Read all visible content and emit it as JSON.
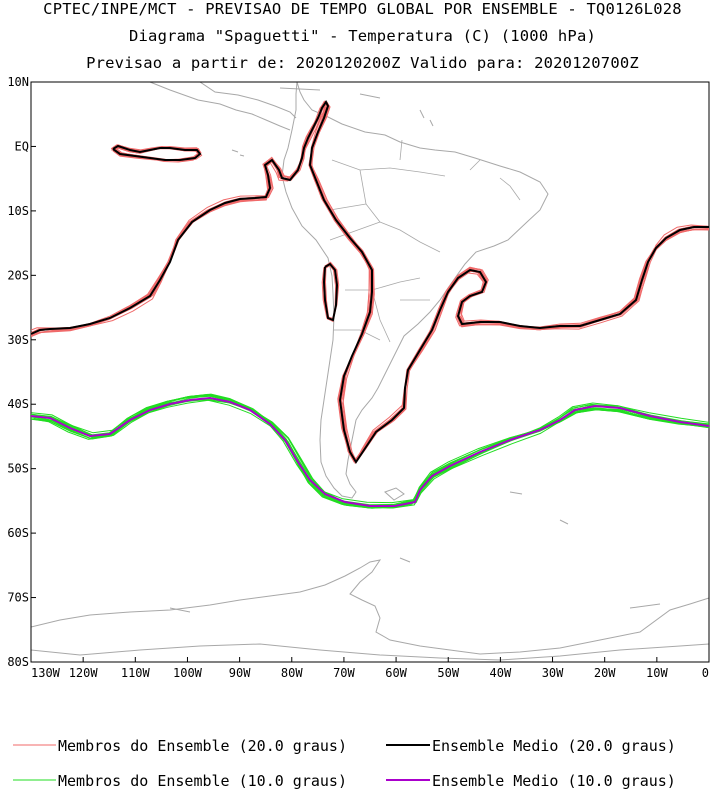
{
  "header": {
    "line1": "CPTEC/INPE/MCT - PREVISAO DE TEMPO GLOBAL POR ENSEMBLE - TQ0126L028",
    "line2": "Diagrama \"Spaguetti\" - Temperatura (C) (1000 hPa)",
    "line3": "Previsao a partir de: 2020120200Z  Valido para: 2020120700Z"
  },
  "map": {
    "lat_labels": [
      "10N",
      "EQ",
      "10S",
      "20S",
      "30S",
      "40S",
      "50S",
      "60S",
      "70S",
      "80S"
    ],
    "lon_labels": [
      "130W",
      "120W",
      "110W",
      "100W",
      "90W",
      "80W",
      "70W",
      "60W",
      "50W",
      "40W",
      "30W",
      "20W",
      "10W",
      "0"
    ],
    "extent": {
      "lon_min": -130,
      "lon_max": 0,
      "lat_min": -80,
      "lat_max": 10
    },
    "colors": {
      "member_20": "#f06a6a",
      "mean_20": "#000000",
      "member_10": "#22dd22",
      "mean_10": "#aa00cc",
      "coast": "#a8a8a8"
    }
  },
  "legend": [
    {
      "label": "Membros do Ensemble (20.0 graus)",
      "color": "#f06a6a"
    },
    {
      "label": "Ensemble Medio (20.0 graus)",
      "color": "#000000"
    },
    {
      "label": "Membros do Ensemble (10.0 graus)",
      "color": "#22dd22"
    },
    {
      "label": "Ensemble Medio (10.0 graus)",
      "color": "#aa00cc"
    }
  ]
}
